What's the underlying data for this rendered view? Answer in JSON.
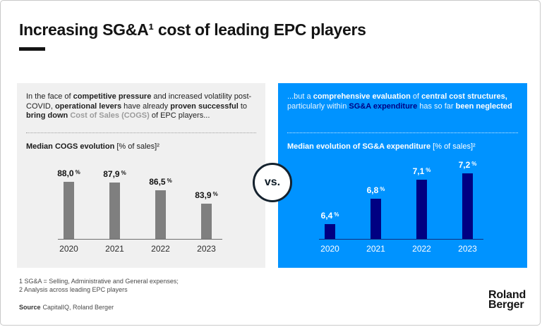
{
  "slide_title": "Increasing SG&A¹ cost of leading EPC players",
  "vs_label": "vs.",
  "colors": {
    "accent_blue": "#0093ff",
    "navy": "#000082",
    "panel_gray": "#f0f0f0",
    "bar_gray": "#7f7f7f",
    "title_black": "#141414"
  },
  "left_panel": {
    "paragraph": [
      {
        "text": "In the face of ",
        "cls": ""
      },
      {
        "text": "competitive pressure",
        "cls": "b"
      },
      {
        "text": " and increased volatility post-COVID, ",
        "cls": ""
      },
      {
        "text": "operational levers",
        "cls": "b"
      },
      {
        "text": " have already ",
        "cls": ""
      },
      {
        "text": "proven successful",
        "cls": "b"
      },
      {
        "text": " to ",
        "cls": ""
      },
      {
        "text": "bring down",
        "cls": "b"
      },
      {
        "text": " ",
        "cls": ""
      },
      {
        "text": "Cost of Sales (COGS)",
        "cls": "b gray"
      },
      {
        "text": " of EPC players...",
        "cls": ""
      }
    ],
    "chart_label": [
      {
        "text": "Median COGS evolution ",
        "cls": "b"
      },
      {
        "text": "[% of sales]²",
        "cls": ""
      }
    ]
  },
  "right_panel": {
    "paragraph": [
      {
        "text": "...but a ",
        "cls": ""
      },
      {
        "text": "comprehensive evaluation",
        "cls": "b"
      },
      {
        "text": " of ",
        "cls": ""
      },
      {
        "text": "central cost structures,",
        "cls": "b"
      },
      {
        "text": " particularly within ",
        "cls": ""
      },
      {
        "text": "SG&A expenditure",
        "cls": "b navy"
      },
      {
        "text": " has so far ",
        "cls": ""
      },
      {
        "text": "been neglected",
        "cls": "b"
      }
    ],
    "chart_label": [
      {
        "text": "Median evolution of SG&A expenditure ",
        "cls": "b"
      },
      {
        "text": "[% of sales]²",
        "cls": ""
      }
    ]
  },
  "chart_data": [
    {
      "type": "bar",
      "title": "Median COGS evolution [% of sales]²",
      "categories": [
        "2020",
        "2021",
        "2022",
        "2023"
      ],
      "values": [
        88.0,
        87.9,
        86.5,
        83.9
      ],
      "value_labels": [
        "88,0",
        "87,9",
        "86,5",
        "83,9"
      ],
      "unit": "%",
      "ylim": [
        77.4,
        90.5
      ],
      "bar_color": "#7f7f7f",
      "grid": false,
      "legend": "none",
      "note": "values shown as data labels above bars, baseline axis only"
    },
    {
      "type": "bar",
      "title": "Median evolution of SG&A expenditure [% of sales]²",
      "categories": [
        "2020",
        "2021",
        "2022",
        "2023"
      ],
      "values": [
        6.4,
        6.8,
        7.1,
        7.2
      ],
      "value_labels": [
        "6,4",
        "6,8",
        "7,1",
        "7,2"
      ],
      "unit": "%",
      "ylim": [
        6.17,
        7.28
      ],
      "bar_color": "#000082",
      "grid": false,
      "legend": "none",
      "note": "values shown as data labels above bars, baseline axis only"
    }
  ],
  "footnotes": [
    "1 SG&A = Selling, Administrative and General expenses;",
    "2 Analysis across leading EPC players"
  ],
  "source": {
    "label": "Source",
    "text": "CapitalIQ, Roland Berger"
  },
  "logo": {
    "line1": "Roland",
    "line2": "Berger"
  }
}
